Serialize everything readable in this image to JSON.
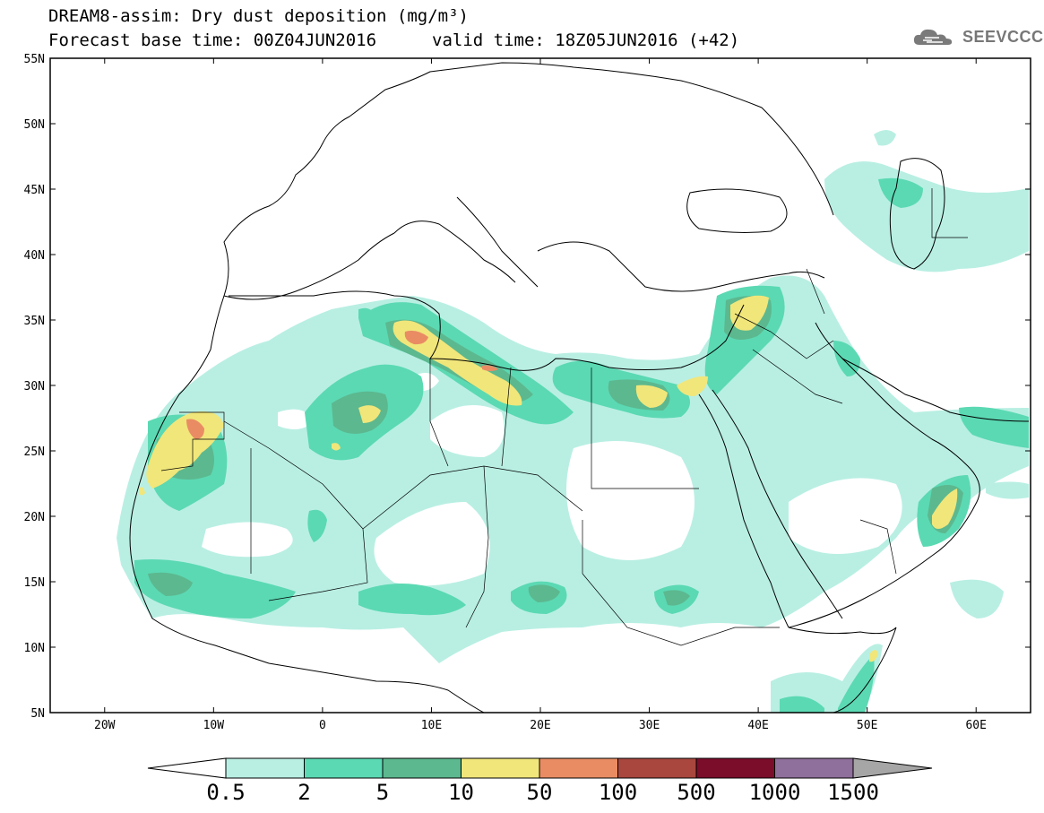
{
  "title": "DREAM8-assim: Dry dust deposition (mg/m³)",
  "forecast_base": "Forecast base time: 00Z04JUN2016",
  "valid_time": "valid time: 18Z05JUN2016 (+42)",
  "logo_text": "SEEVCCC",
  "lat_labels": [
    "55N",
    "50N",
    "45N",
    "40N",
    "35N",
    "30N",
    "25N",
    "20N",
    "15N",
    "10N",
    "5N"
  ],
  "lon_labels": [
    "20W",
    "10W",
    "0",
    "10E",
    "20E",
    "30E",
    "40E",
    "50E",
    "60E"
  ],
  "colorbar": {
    "labels": [
      "0.5",
      "2",
      "5",
      "10",
      "50",
      "100",
      "500",
      "1000",
      "1500"
    ],
    "colors": [
      "#ffffff",
      "#b9efe3",
      "#5bd9b3",
      "#5cb88f",
      "#f1e67a",
      "#e98c64",
      "#a9473e",
      "#7b0c2a",
      "#8f6f9c",
      "#a6a6a6"
    ]
  },
  "map": {
    "lon_range": [
      -25,
      65
    ],
    "lat_range": [
      5,
      55
    ],
    "projection": "cylindrical equidistant"
  }
}
